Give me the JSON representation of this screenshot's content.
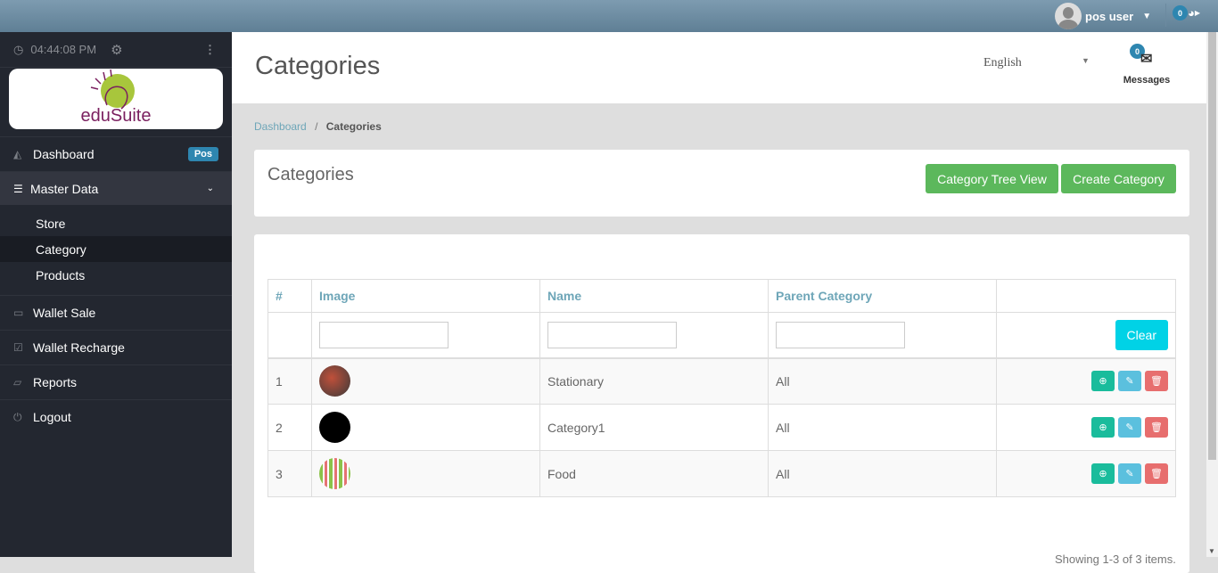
{
  "topbar": {
    "username": "pos user",
    "notifications": "0"
  },
  "sidebar": {
    "time": "04:44:08 PM",
    "logo_text": "eduSuite",
    "items": [
      {
        "label": "Dashboard",
        "icon": "area-chart-icon",
        "badge": "Pos"
      },
      {
        "label": "Master Data",
        "icon": "database-icon"
      },
      {
        "label": "Wallet Sale",
        "icon": "money-icon"
      },
      {
        "label": "Wallet Recharge",
        "icon": "check-square-icon"
      },
      {
        "label": "Reports",
        "icon": "folder-open-icon"
      },
      {
        "label": "Logout",
        "icon": "power-icon"
      }
    ],
    "subitems": [
      {
        "label": "Store"
      },
      {
        "label": "Category"
      },
      {
        "label": "Products"
      }
    ]
  },
  "header": {
    "title": "Categories",
    "language": "English",
    "messages_label": "Messages",
    "messages_count": "0"
  },
  "breadcrumb": {
    "home": "Dashboard",
    "current": "Categories"
  },
  "panel": {
    "title": "Categories",
    "tree_view": "Category Tree View",
    "create": "Create Category"
  },
  "table": {
    "columns": [
      "#",
      "Image",
      "Name",
      "Parent Category",
      ""
    ],
    "clear": "Clear",
    "rows": [
      {
        "num": "1",
        "name": "Stationary",
        "parent": "All"
      },
      {
        "num": "2",
        "name": "Category1",
        "parent": "All"
      },
      {
        "num": "3",
        "name": "Food",
        "parent": "All"
      }
    ],
    "summary": "Showing 1-3 of 3 items."
  },
  "colors": {
    "accent": "#5cb85c",
    "sidebar": "#232730",
    "view": "#1abc9c",
    "edit": "#5bc0de",
    "delete": "#e76e6e"
  }
}
